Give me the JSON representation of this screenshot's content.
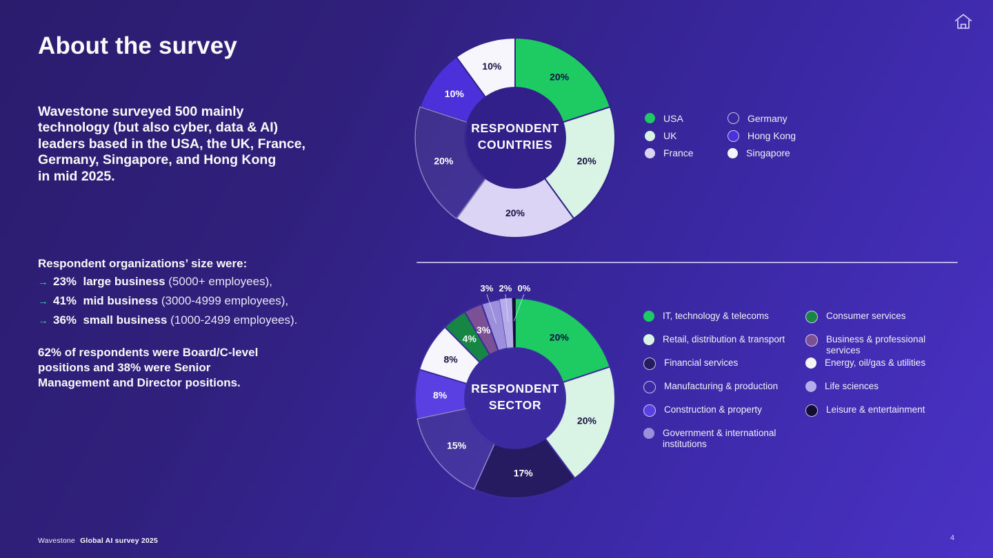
{
  "slide": {
    "title": "About the survey",
    "intro": "Wavestone surveyed 500 mainly\ntechnology (but also cyber, data & AI)\nleaders based in the USA, the UK, France,\nGermany, Singapore, and Hong Kong\nin mid 2025.",
    "org_heading": "Respondent organizations’ size were:",
    "bullets": [
      {
        "arrow": "→",
        "bold": "23%  large business",
        "rest": " (5000+ employees),"
      },
      {
        "arrow": "→",
        "bold": "41%  mid business",
        "rest": " (3000-4999 employees),"
      },
      {
        "arrow": "→",
        "bold": "36%  small business",
        "rest": " (1000-2499 employees)."
      }
    ],
    "positions_note": "62% of respondents were Board/C-level\npositions and 38% were Senior\nManagement and Director positions.",
    "footer_brand": "Wavestone",
    "footer_doc": "Global AI survey 2025",
    "page_number": "4"
  },
  "colors": {
    "accent_arrow": "#35cfa0",
    "divider": "#cdc5f1",
    "bg_gradient_start": "#2b1c6e",
    "bg_gradient_end": "#4a32c6",
    "label_dark": "#171143",
    "label_light": "#ffffff"
  },
  "chart_data": [
    {
      "type": "pie",
      "variant": "donut",
      "title": "RESPONDENT COUNTRIES",
      "center_label": "RESPONDENT\nCOUNTRIES",
      "legend_position": "right",
      "segments": [
        {
          "label": "USA",
          "value": 20,
          "display": "20%",
          "color": "#1ecb62",
          "text_color": "dark"
        },
        {
          "label": "UK",
          "value": 20,
          "display": "20%",
          "color": "#d9f4e5",
          "text_color": "dark"
        },
        {
          "label": "France",
          "value": 20,
          "display": "20%",
          "color": "#dcd4f5",
          "text_color": "dark"
        },
        {
          "label": "Germany",
          "value": 20,
          "display": "20%",
          "color": "hollow",
          "text_color": "light"
        },
        {
          "label": "Hong Kong",
          "value": 10,
          "display": "10%",
          "color": "#4c30da",
          "text_color": "light"
        },
        {
          "label": "Singapore",
          "value": 10,
          "display": "10%",
          "color": "#f8f6fd",
          "text_color": "dark"
        }
      ],
      "legend_columns": [
        [
          "USA",
          "UK",
          "France"
        ],
        [
          "Germany",
          "Hong Kong",
          "Singapore"
        ]
      ]
    },
    {
      "type": "pie",
      "variant": "donut",
      "title": "RESPONDENT SECTOR",
      "center_label": "RESPONDENT\nSECTOR",
      "legend_position": "right",
      "segments": [
        {
          "label": "IT, technology & telecoms",
          "value": 20,
          "display": "20%",
          "color": "#1ecb62",
          "text_color": "dark"
        },
        {
          "label": "Retail, distribution & transport",
          "value": 20,
          "display": "20%",
          "color": "#d9f4e5",
          "text_color": "dark"
        },
        {
          "label": "Financial services",
          "value": 17,
          "display": "17%",
          "color": "#261a60",
          "text_color": "light"
        },
        {
          "label": "Manufacturing & production",
          "value": 15,
          "display": "15%",
          "color": "hollow",
          "text_color": "light"
        },
        {
          "label": "Construction & property",
          "value": 8,
          "display": "8%",
          "color": "#5a40e2",
          "text_color": "light"
        },
        {
          "label": "Energy, oil/gas & utilities",
          "value": 8,
          "display": "8%",
          "color": "#f8f6fd",
          "text_color": "dark"
        },
        {
          "label": "Consumer services",
          "value": 4,
          "display": "4%",
          "color": "#178544",
          "text_color": "light"
        },
        {
          "label": "Business & professional services",
          "value": 3,
          "display": "3%",
          "color": "#7c5094",
          "text_color": "light"
        },
        {
          "label": "Government & international institutions",
          "value": 3,
          "display": "3%",
          "color": "#9c90dd",
          "text_color": "light",
          "label_outside": true
        },
        {
          "label": "Life sciences",
          "value": 2,
          "display": "2%",
          "color": "#b6ace9",
          "text_color": "light",
          "label_outside": true
        },
        {
          "label": "Leisure & entertainment",
          "value": 0,
          "display": "0%",
          "weight": 0.45,
          "color": "#130c33",
          "text_color": "light",
          "label_outside": true
        }
      ],
      "legend_columns": [
        [
          "IT, technology & telecoms",
          "Retail, distribution & transport",
          "Financial services",
          "Manufacturing & production",
          "Construction & property",
          "Government & international institutions"
        ],
        [
          "Consumer services",
          "Business & professional services",
          "Energy, oil/gas & utilities",
          "Life sciences",
          "Leisure & entertainment"
        ]
      ]
    }
  ]
}
